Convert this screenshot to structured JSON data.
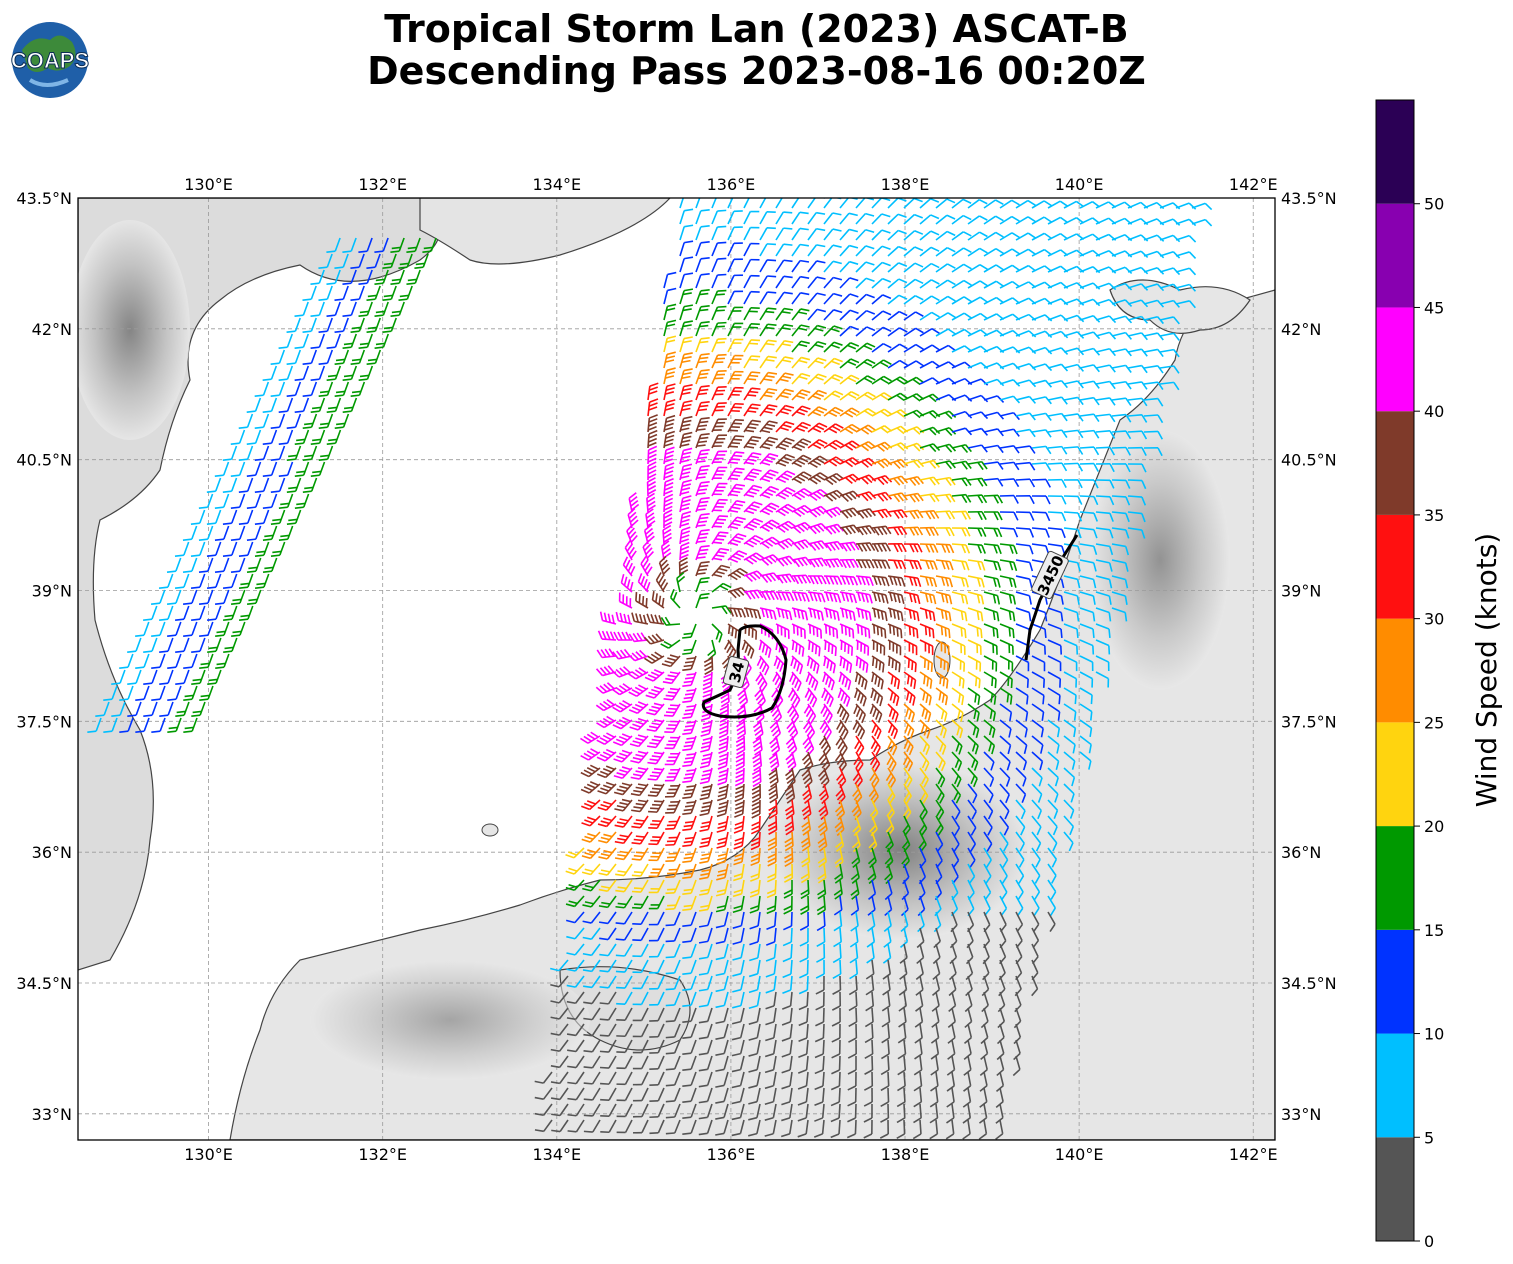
{
  "header": {
    "title_line1": "Tropical Storm Lan (2023) ASCAT-B",
    "title_line2": "Descending Pass 2023-08-16 00:20Z",
    "logo_text": "COAPS"
  },
  "map": {
    "lon_ticks": [
      "130°E",
      "132°E",
      "134°E",
      "136°E",
      "138°E",
      "140°E",
      "142°E"
    ],
    "lat_ticks": [
      "43.5°N",
      "42°N",
      "40.5°N",
      "39°N",
      "37.5°N",
      "36°N",
      "34.5°N",
      "33°N"
    ],
    "lon_values": [
      130,
      132,
      134,
      136,
      138,
      140,
      142
    ],
    "lat_values": [
      43.5,
      42,
      40.5,
      39,
      37.5,
      36,
      34.5,
      33
    ],
    "lon_range": [
      128.5,
      142.25
    ],
    "lat_range": [
      32.7,
      43.5
    ],
    "storm_center": {
      "lon": 135.6,
      "lat": 38.7
    },
    "contour_labels": [
      "34",
      "3450"
    ]
  },
  "colorbar": {
    "title": "Wind Speed (knots)",
    "ticks": [
      "0",
      "5",
      "10",
      "15",
      "20",
      "25",
      "30",
      "35",
      "40",
      "45",
      "50"
    ],
    "bins": [
      {
        "min": 0,
        "max": 5,
        "color": "#555555"
      },
      {
        "min": 5,
        "max": 10,
        "color": "#00bfff"
      },
      {
        "min": 10,
        "max": 15,
        "color": "#0033ff"
      },
      {
        "min": 15,
        "max": 20,
        "color": "#009900"
      },
      {
        "min": 20,
        "max": 25,
        "color": "#ffd40f"
      },
      {
        "min": 25,
        "max": 30,
        "color": "#ff8c00"
      },
      {
        "min": 30,
        "max": 35,
        "color": "#ff1010"
      },
      {
        "min": 35,
        "max": 40,
        "color": "#7f3a2a"
      },
      {
        "min": 40,
        "max": 45,
        "color": "#ff00ff"
      },
      {
        "min": 45,
        "max": 50,
        "color": "#8800b0"
      },
      {
        "min": 50,
        "max": 55,
        "color": "#2b0055"
      }
    ]
  }
}
